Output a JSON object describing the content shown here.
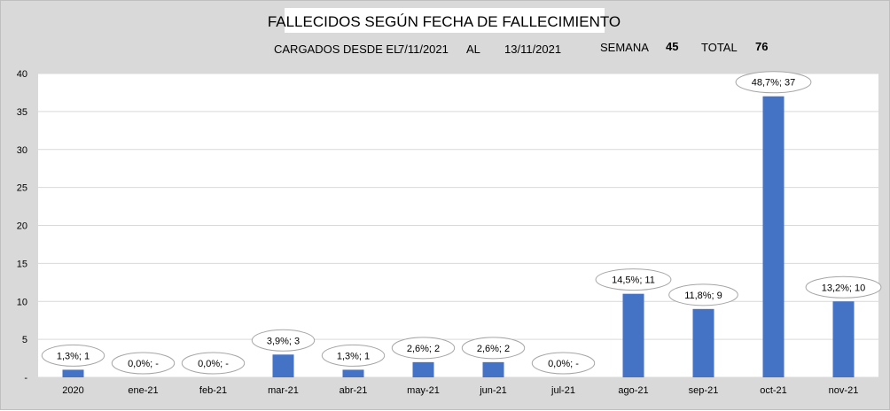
{
  "header": {
    "cargados_label": "CARGADOS DESDE EL",
    "desde": "7/11/2021",
    "al_label": "AL",
    "hasta": "13/11/2021",
    "semana_label": "SEMANA",
    "semana_value": "45",
    "total_label": "TOTAL",
    "total_value": "76"
  },
  "colors": {
    "bar": "#4472c4",
    "plot_background": "#ffffff",
    "chart_background": "#d9d9d9",
    "gridline": "#d9d9d9"
  },
  "chart_data": {
    "type": "bar",
    "title": "FALLECIDOS SEGÚN FECHA DE FALLECIMIENTO",
    "xlabel": "",
    "ylabel": "",
    "categories": [
      "2020",
      "ene-21",
      "feb-21",
      "mar-21",
      "abr-21",
      "may-21",
      "jun-21",
      "jul-21",
      "ago-21",
      "sep-21",
      "oct-21",
      "nov-21"
    ],
    "values": [
      1,
      0,
      0,
      3,
      1,
      2,
      2,
      0,
      11,
      9,
      37,
      10
    ],
    "data_labels": [
      "1,3%; 1",
      "0,0%; -",
      "0,0%; -",
      "3,9%; 3",
      "1,3%; 1",
      "2,6%; 2",
      "2,6%; 2",
      "0,0%; -",
      "14,5%; 11",
      "11,8%; 9",
      "48,7%; 37",
      "13,2%; 10"
    ],
    "ylim": [
      0,
      40
    ],
    "yticks": [
      0,
      5,
      10,
      15,
      20,
      25,
      30,
      35,
      40
    ],
    "ytick_labels": [
      "-",
      "5",
      "10",
      "15",
      "20",
      "25",
      "30",
      "35",
      "40"
    ],
    "grid": true,
    "legend": "none"
  }
}
